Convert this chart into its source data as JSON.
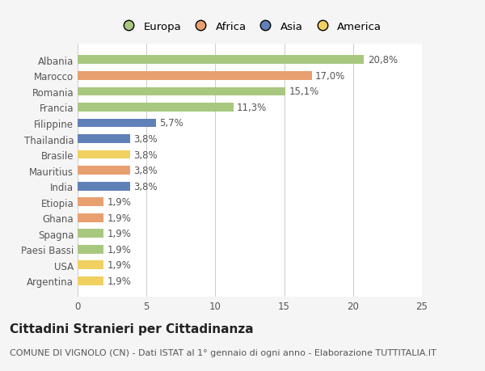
{
  "countries": [
    "Albania",
    "Marocco",
    "Romania",
    "Francia",
    "Filippine",
    "Thailandia",
    "Brasile",
    "Mauritius",
    "India",
    "Etiopia",
    "Ghana",
    "Spagna",
    "Paesi Bassi",
    "USA",
    "Argentina"
  ],
  "values": [
    20.8,
    17.0,
    15.1,
    11.3,
    5.7,
    3.8,
    3.8,
    3.8,
    3.8,
    1.9,
    1.9,
    1.9,
    1.9,
    1.9,
    1.9
  ],
  "labels": [
    "20,8%",
    "17,0%",
    "15,1%",
    "11,3%",
    "5,7%",
    "3,8%",
    "3,8%",
    "3,8%",
    "3,8%",
    "1,9%",
    "1,9%",
    "1,9%",
    "1,9%",
    "1,9%",
    "1,9%"
  ],
  "continents": [
    "Europa",
    "Africa",
    "Europa",
    "Europa",
    "Asia",
    "Asia",
    "America",
    "Africa",
    "Asia",
    "Africa",
    "Africa",
    "Europa",
    "Europa",
    "America",
    "America"
  ],
  "continent_colors": {
    "Europa": "#a8c880",
    "Africa": "#e8a070",
    "Asia": "#6080b8",
    "America": "#f0d060"
  },
  "legend_order": [
    "Europa",
    "Africa",
    "Asia",
    "America"
  ],
  "title": "Cittadini Stranieri per Cittadinanza",
  "subtitle": "COMUNE DI VIGNOLO (CN) - Dati ISTAT al 1° gennaio di ogni anno - Elaborazione TUTTITALIA.IT",
  "xlim": [
    0,
    25
  ],
  "xticks": [
    0,
    5,
    10,
    15,
    20,
    25
  ],
  "background_color": "#f5f5f5",
  "plot_bg_color": "#ffffff",
  "grid_color": "#cccccc",
  "title_fontsize": 11,
  "subtitle_fontsize": 8,
  "tick_fontsize": 8.5,
  "label_fontsize": 8.5,
  "legend_fontsize": 9.5
}
